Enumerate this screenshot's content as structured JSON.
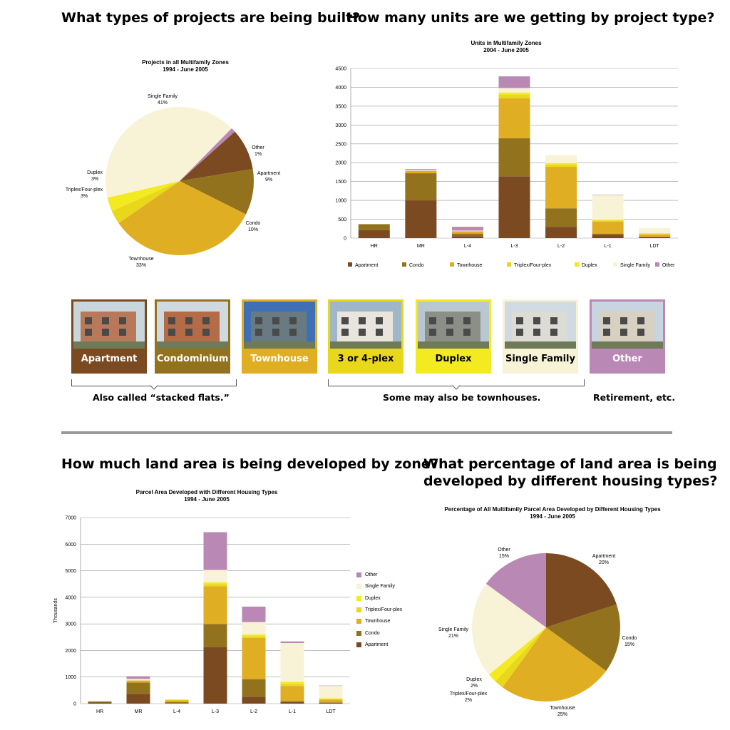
{
  "headings": {
    "q1": "What types of projects are being built?",
    "q2": "How many units are we getting by project type?",
    "q3": "How much land area is being developed by zone?",
    "q4_line1": "What percentage of land area is being",
    "q4_line2": "developed by different housing types?"
  },
  "colors": {
    "Apartment": "#7b4a21",
    "Condo": "#93721e",
    "Townhouse": "#e0ae22",
    "Triplex/Four-plex": "#e9d71c",
    "Duplex": "#f3ea1f",
    "Single Family": "#f8f3d6",
    "Other": "#b988b4"
  },
  "chart_data": [
    {
      "type": "pie",
      "title": "Projects in all Multifamily Zones",
      "subtitle": "1994 - June 2005",
      "slices": [
        {
          "label": "Single Family",
          "value": 41,
          "display": "41%"
        },
        {
          "label": "Other",
          "value": 1,
          "display": "1%"
        },
        {
          "label": "Apartment",
          "value": 9,
          "display": "9%"
        },
        {
          "label": "Condo",
          "value": 10,
          "display": "10%"
        },
        {
          "label": "Townhouse",
          "value": 33,
          "display": "33%"
        },
        {
          "label": "Triplex/Four-plex",
          "value": 3,
          "display": "3%"
        },
        {
          "label": "Duplex",
          "value": 3,
          "display": "3%"
        }
      ]
    },
    {
      "type": "bar",
      "stacked": true,
      "title": "Units in Multifamily Zones",
      "subtitle": "2004 - June 2005",
      "categories": [
        "HR",
        "MR",
        "L-4",
        "L-3",
        "L-2",
        "L-1",
        "LDT"
      ],
      "ylim": [
        0,
        4500
      ],
      "yticks": [
        0,
        500,
        1000,
        1500,
        2000,
        2500,
        3000,
        3500,
        4000,
        4500
      ],
      "grid": true,
      "legend": "bottom",
      "series": [
        {
          "name": "Apartment",
          "values": [
            210,
            1000,
            50,
            1640,
            300,
            90,
            20
          ]
        },
        {
          "name": "Condo",
          "values": [
            160,
            720,
            70,
            1010,
            490,
            30,
            20
          ]
        },
        {
          "name": "Townhouse",
          "values": [
            0,
            60,
            50,
            1060,
            1100,
            320,
            60
          ]
        },
        {
          "name": "Triplex/Four-plex",
          "values": [
            0,
            0,
            10,
            90,
            60,
            30,
            10
          ]
        },
        {
          "name": "Duplex",
          "values": [
            0,
            0,
            10,
            60,
            40,
            20,
            20
          ]
        },
        {
          "name": "Single Family",
          "values": [
            0,
            20,
            10,
            120,
            210,
            650,
            140
          ]
        },
        {
          "name": "Other",
          "values": [
            0,
            30,
            100,
            310,
            0,
            10,
            0
          ]
        }
      ]
    },
    {
      "type": "bar",
      "stacked": true,
      "title": "Parcel Area Developed with Different Housing Types",
      "subtitle": "1994 - June 2005",
      "categories": [
        "HR",
        "MR",
        "L-4",
        "L-3",
        "L-2",
        "L-1",
        "LDT"
      ],
      "ylabel": "Thousands",
      "ylim": [
        0,
        7000
      ],
      "yticks": [
        0,
        1000,
        2000,
        3000,
        4000,
        5000,
        6000,
        7000
      ],
      "grid": true,
      "legend": "right",
      "series": [
        {
          "name": "Apartment",
          "values": [
            40,
            370,
            20,
            2120,
            260,
            60,
            30
          ]
        },
        {
          "name": "Condo",
          "values": [
            40,
            420,
            40,
            870,
            660,
            40,
            20
          ]
        },
        {
          "name": "Townhouse",
          "values": [
            0,
            80,
            60,
            1420,
            1550,
            560,
            100
          ]
        },
        {
          "name": "Triplex/Four-plex",
          "values": [
            0,
            0,
            20,
            90,
            70,
            80,
            20
          ]
        },
        {
          "name": "Duplex",
          "values": [
            0,
            0,
            20,
            60,
            60,
            80,
            30
          ]
        },
        {
          "name": "Single Family",
          "values": [
            0,
            60,
            0,
            470,
            470,
            1460,
            470
          ]
        },
        {
          "name": "Other",
          "values": [
            0,
            100,
            0,
            1420,
            580,
            60,
            10
          ]
        }
      ]
    },
    {
      "type": "pie",
      "title": "Percentage of All Multifamily Parcel Area Developed by Different Housing Types",
      "subtitle": "1994 - June 2005",
      "slices": [
        {
          "label": "Apartment",
          "value": 20,
          "display": "20%"
        },
        {
          "label": "Condo",
          "value": 15,
          "display": "15%"
        },
        {
          "label": "Townhouse",
          "value": 25,
          "display": "25%"
        },
        {
          "label": "Triplex/Four-plex",
          "value": 2,
          "display": "2%"
        },
        {
          "label": "Duplex",
          "value": 2,
          "display": "2%"
        },
        {
          "label": "Single Family",
          "value": 21,
          "display": "21%"
        },
        {
          "label": "Other",
          "value": 15,
          "display": "15%"
        }
      ]
    }
  ],
  "photo_cards": [
    {
      "label": "Apartment",
      "color": "#7b4a21",
      "text_color": "#ffffff"
    },
    {
      "label": "Condominium",
      "color": "#93721e",
      "text_color": "#ffffff"
    },
    {
      "label": "Townhouse",
      "color": "#e0ae22",
      "text_color": "#ffffff"
    },
    {
      "label": "3 or 4-plex",
      "color": "#e9d71c",
      "text_color": "#000000"
    },
    {
      "label": "Duplex",
      "color": "#f3ea1f",
      "text_color": "#000000"
    },
    {
      "label": "Single Family",
      "color": "#f8f3d6",
      "text_color": "#000000"
    },
    {
      "label": "Other",
      "color": "#b988b4",
      "text_color": "#ffffff"
    }
  ],
  "notes": {
    "stacked_flats": "Also called “stacked flats.”",
    "townhouses": "Some may also be townhouses.",
    "retirement": "Retirement, etc."
  }
}
